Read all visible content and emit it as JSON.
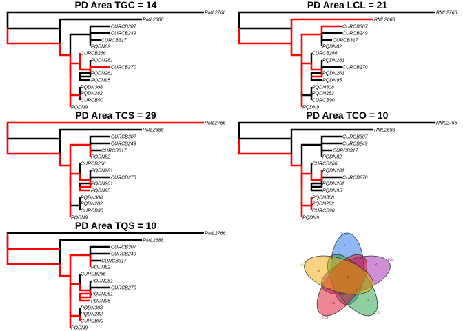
{
  "tree": {
    "rml2766": {
      "parent": null
    },
    "n1": {
      "parent": "rml2766"
    },
    "RML2766": {
      "parent": "rml2766"
    },
    "RML2688": {
      "parent": "n1"
    },
    "n2": {
      "parent": "n1"
    },
    "n3": {
      "parent": "n2"
    },
    "n4": {
      "parent": "n2"
    },
    "CURCB307": {
      "parent": "n3"
    },
    "n5": {
      "parent": "n3"
    },
    "CURCB249": {
      "parent": "n5"
    },
    "n6": {
      "parent": "n5"
    },
    "CURCB317": {
      "parent": "n6"
    },
    "PQDN82": {
      "parent": "n6"
    },
    "n7": {
      "parent": "n4"
    },
    "n8": {
      "parent": "n4"
    },
    "CURCB266": {
      "parent": "n7"
    },
    "n9": {
      "parent": "n7"
    },
    "PQDN281": {
      "parent": "n9"
    },
    "n10": {
      "parent": "n9"
    },
    "CURCB270": {
      "parent": "n10"
    },
    "n11": {
      "parent": "n10"
    },
    "PQDN261": {
      "parent": "n11"
    },
    "PQDN95": {
      "parent": "n11"
    },
    "n12": {
      "parent": "n8"
    },
    "PQDN9": {
      "parent": "n8"
    },
    "PQDN308": {
      "parent": "n12"
    },
    "n13": {
      "parent": "n12"
    },
    "PQDN282": {
      "parent": "n13"
    },
    "CURCB90": {
      "parent": "n13"
    }
  },
  "chart_data": [
    {
      "type": "tree",
      "title": "PD Area TGC = 14",
      "highlight_color": "#ff0000",
      "tips": [
        "RML2766",
        "RML2688",
        "CURCB307",
        "CURCB249",
        "CURCB317",
        "PQDN82",
        "CURCB266",
        "PQDN281",
        "CURCB270",
        "PQDN261",
        "PQDN95",
        "PQDN308",
        "PQDN282",
        "CURCB90",
        "PQDN9"
      ],
      "highlighted_edges": [
        "n1",
        "n2",
        "n4",
        "n7",
        "CURCB266",
        "n9",
        "n10",
        "CURCB270",
        "n8",
        "n12",
        "n13",
        "PQDN9"
      ]
    },
    {
      "type": "tree",
      "title": "PD Area LCL = 21",
      "highlight_color": "#ff0000",
      "tips": [
        "RML2766",
        "RML2688",
        "CURCB307",
        "CURCB249",
        "CURCB317",
        "PQDN82",
        "CURCB266",
        "PQDN281",
        "CURCB270",
        "PQDN261",
        "PQDN95",
        "PQDN308",
        "PQDN282",
        "CURCB90",
        "PQDN9"
      ],
      "highlighted_edges": [
        "n1",
        "RML2688",
        "n2",
        "n3",
        "CURCB307",
        "n4",
        "n7",
        "n9",
        "n10",
        "n11",
        "n8",
        "PQDN9"
      ]
    },
    {
      "type": "tree",
      "title": "PD Area TCS = 29",
      "highlight_color": "#ff0000",
      "tips": [
        "RML2766",
        "RML2688",
        "CURCB307",
        "CURCB249",
        "CURCB317",
        "PQDN82",
        "CURCB266",
        "PQDN281",
        "CURCB270",
        "PQDN261",
        "PQDN95",
        "PQDN308",
        "PQDN282",
        "CURCB90",
        "PQDN9"
      ],
      "highlighted_edges": [
        "RML2766",
        "n1",
        "n2",
        "n3",
        "n5",
        "n6",
        "PQDN82",
        "n4",
        "n7",
        "n9",
        "n10",
        "n11",
        "PQDN95",
        "n8",
        "PQDN9"
      ]
    },
    {
      "type": "tree",
      "title": "PD Area TCO = 10",
      "highlight_color": "#ff0000",
      "tips": [
        "RML2766",
        "RML2688",
        "CURCB307",
        "CURCB249",
        "CURCB317",
        "PQDN82",
        "CURCB266",
        "PQDN281",
        "CURCB270",
        "PQDN261",
        "PQDN95",
        "PQDN308",
        "PQDN282",
        "CURCB90",
        "PQDN9"
      ],
      "highlighted_edges": [
        "n1",
        "n2",
        "n4",
        "n7",
        "n9",
        "PQDN281",
        "n8",
        "n12",
        "PQDN308",
        "n13",
        "PQDN282",
        "CURCB90",
        "PQDN9"
      ]
    },
    {
      "type": "tree",
      "title": "PD Area TQS = 10",
      "highlight_color": "#ff0000",
      "tips": [
        "RML2766",
        "RML2688",
        "CURCB307",
        "CURCB249",
        "CURCB317",
        "PQDN82",
        "CURCB266",
        "PQDN281",
        "CURCB270",
        "PQDN261",
        "PQDN95",
        "PQDN308",
        "PQDN282",
        "CURCB90",
        "PQDN9"
      ],
      "highlighted_edges": [
        "rml2766",
        "n1",
        "n2",
        "n3",
        "n5",
        "n6",
        "PQDN82",
        "n4",
        "n7",
        "n9",
        "n10",
        "n11",
        "PQDN261",
        "PQDN95",
        "n8",
        "n12",
        "n13",
        "CURCB90",
        "PQDN9"
      ]
    },
    {
      "type": "venn",
      "sets": [
        {
          "name": "TGC",
          "color": "#1f6fe8",
          "label_color": "#1f6fe8"
        },
        {
          "name": "TQS",
          "color": "#a020b0",
          "label_color": "#a020b0"
        },
        {
          "name": "TCO",
          "color": "#22a040",
          "label_color": "#22a040"
        },
        {
          "name": "TCS",
          "color": "#e0102a",
          "label_color": "#e0102a"
        },
        {
          "name": "LCL",
          "color": "#f0a500",
          "label_color": "#e0a000"
        }
      ],
      "region_labels": [
        "5",
        "2",
        "3",
        "10",
        "15",
        "0",
        "0",
        "0",
        "0",
        "0",
        "6"
      ]
    }
  ]
}
